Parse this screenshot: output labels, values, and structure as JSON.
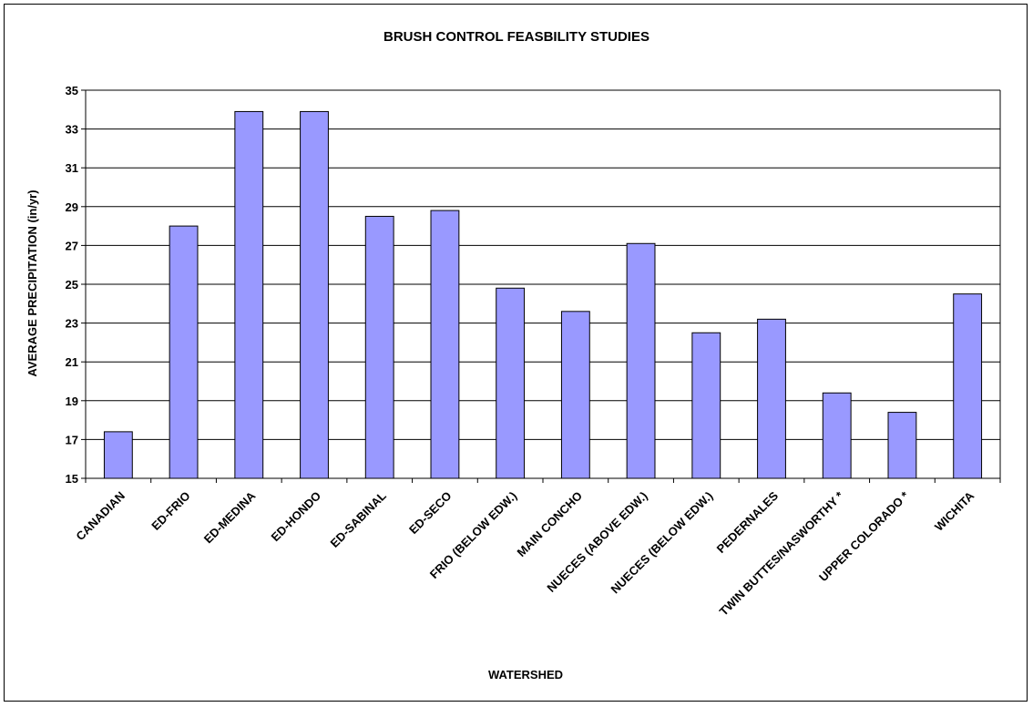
{
  "chart_data": {
    "type": "bar",
    "title": "BRUSH CONTROL FEASBILITY STUDIES",
    "xlabel": "WATERSHED",
    "ylabel": "AVERAGE PRECIPITATION (in/yr)",
    "categories": [
      "CANADIAN",
      "ED-FRIO",
      "ED-MEDINA",
      "ED-HONDO",
      "ED-SABINAL",
      "ED-SECO",
      "FRIO (BELOW EDW.)",
      "MAIN CONCHO",
      "NUECES (ABOVE EDW.)",
      "NUECES (BELOW EDW.)",
      "PEDERNALES",
      "TWIN BUTTES/NASWORTHY *",
      "UPPER COLORADO *",
      "WICHITA"
    ],
    "values": [
      17.4,
      28.0,
      33.9,
      33.9,
      28.5,
      28.8,
      24.8,
      23.6,
      27.1,
      22.5,
      23.2,
      19.4,
      18.4,
      24.5
    ],
    "ylim": [
      15,
      35
    ],
    "yticks": [
      15,
      17,
      19,
      21,
      23,
      25,
      27,
      29,
      31,
      33,
      35
    ],
    "grid": true,
    "legend": "none",
    "colors": {
      "bar_fill": "#9999FF",
      "bar_stroke": "#000000",
      "grid": "#000000"
    }
  }
}
